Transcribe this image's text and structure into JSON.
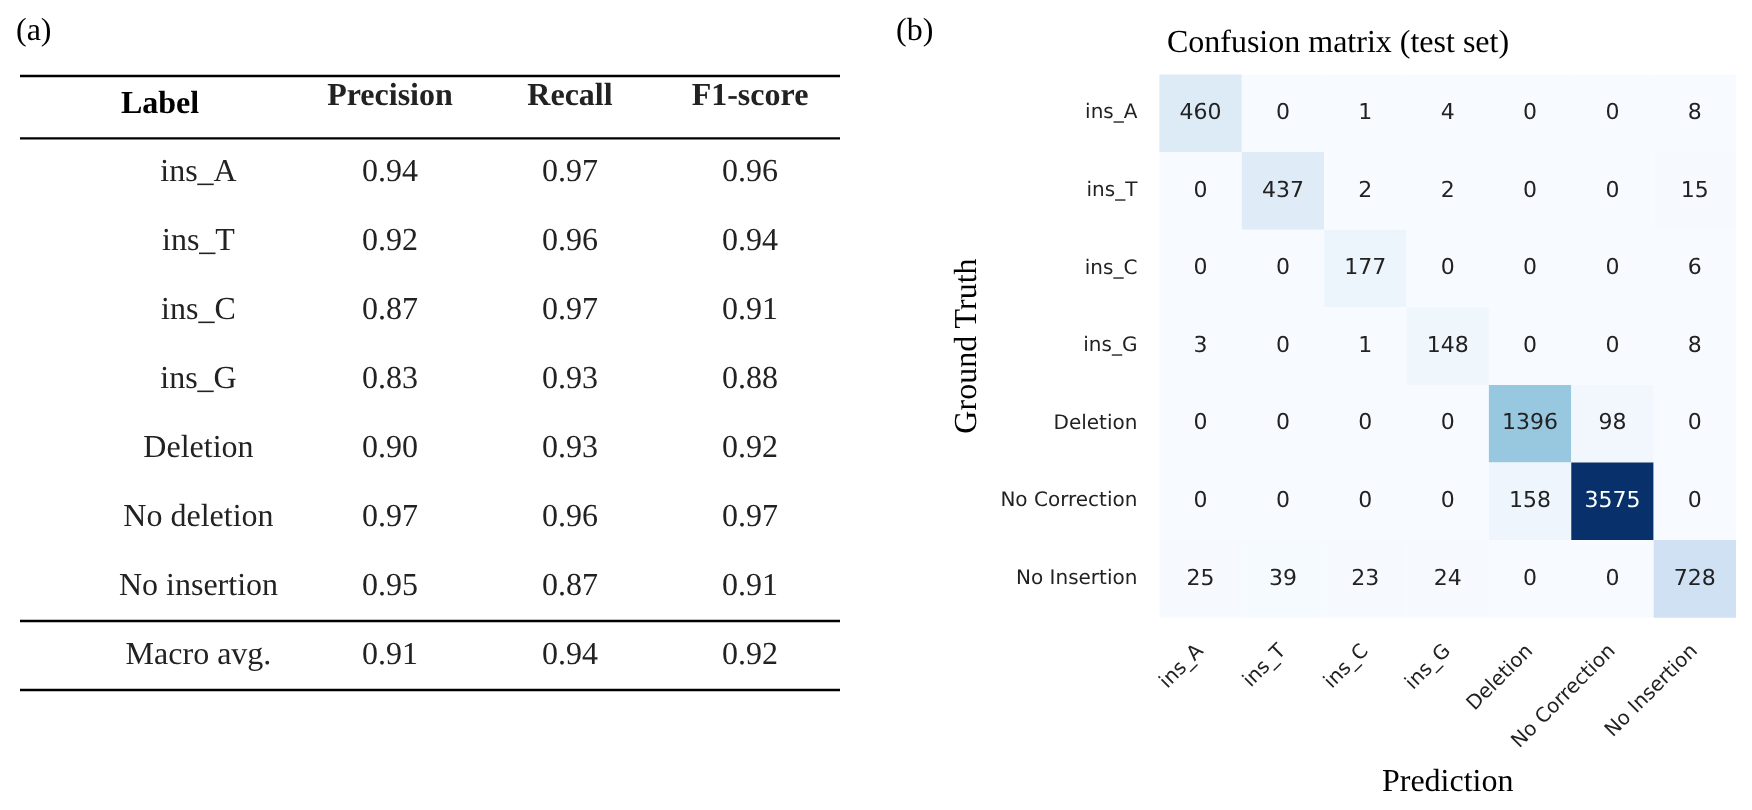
{
  "chart_data": [
    {
      "type": "heatmap",
      "annotations": [
        "(a)"
      ],
      "ylabel": "Label",
      "color": "#ffffff",
      "data_labels": true,
      "categories": [
        "Precision",
        "Recall",
        "F1-score"
      ],
      "y_categories": [
        "ins_A",
        "ins_T",
        "ins_C",
        "ins_G",
        "Deletion",
        "No deletion",
        "No insertion",
        "Macro avg."
      ],
      "cells": [
        [
          0.94,
          0.97,
          0.96
        ],
        [
          0.92,
          0.96,
          0.94
        ],
        [
          0.87,
          0.97,
          0.91
        ],
        [
          0.83,
          0.93,
          0.88
        ],
        [
          0.9,
          0.93,
          0.92
        ],
        [
          0.97,
          0.96,
          0.97
        ],
        [
          0.95,
          0.87,
          0.91
        ],
        [
          0.91,
          0.94,
          0.92
        ]
      ],
      "cell_labels": [
        [
          "0.94",
          "0.97",
          "0.96"
        ],
        [
          "0.92",
          "0.96",
          "0.94"
        ],
        [
          "0.87",
          "0.97",
          "0.91"
        ],
        [
          "0.83",
          "0.93",
          "0.88"
        ],
        [
          "0.90",
          "0.93",
          "0.92"
        ],
        [
          "0.97",
          "0.96",
          "0.97"
        ],
        [
          "0.95",
          "0.87",
          "0.91"
        ],
        [
          "0.91",
          "0.94",
          "0.92"
        ]
      ]
    },
    {
      "type": "heatmap",
      "title": "Confusion matrix (test set)",
      "annotations": [
        "(b)"
      ],
      "xlabel": "Prediction",
      "ylabel": "Ground Truth",
      "data_labels": true,
      "categories": [
        "ins_A",
        "ins_T",
        "ins_C",
        "ins_G",
        "Deletion",
        "No Correction",
        "No Insertion"
      ],
      "y_categories": [
        "ins_A",
        "ins_T",
        "ins_C",
        "ins_G",
        "Deletion",
        "No Correction",
        "No Insertion"
      ],
      "cells": [
        [
          460,
          0,
          1,
          4,
          0,
          0,
          8
        ],
        [
          0,
          437,
          2,
          2,
          0,
          0,
          15
        ],
        [
          0,
          0,
          177,
          0,
          0,
          0,
          6
        ],
        [
          3,
          0,
          1,
          148,
          0,
          0,
          8
        ],
        [
          0,
          0,
          0,
          0,
          1396,
          98,
          0
        ],
        [
          0,
          0,
          0,
          0,
          158,
          3575,
          0
        ],
        [
          25,
          39,
          23,
          24,
          0,
          0,
          728
        ]
      ]
    }
  ]
}
